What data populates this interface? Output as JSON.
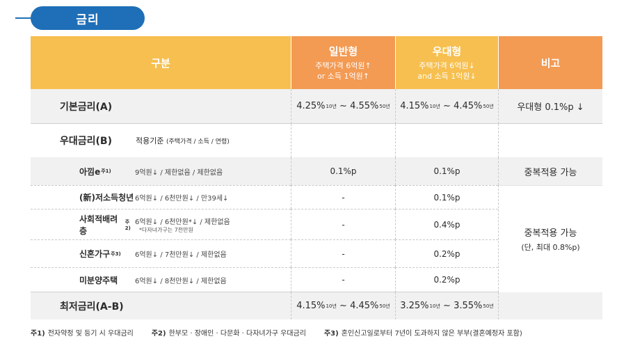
{
  "title": "금리",
  "header": {
    "gubun": "구분",
    "normal": {
      "name": "일반형",
      "line1": "주택가격 6억원↑",
      "line2": "or 소득 1억원↑"
    },
    "pref": {
      "name": "우대형",
      "line1": "주택가격 6억원↓",
      "line2": "and 소득 1억원↓"
    },
    "note": "비고"
  },
  "base": {
    "label": "기본금리(A)",
    "normal_rate": {
      "from": "4.25%",
      "from_sup": "10년",
      "sep": " ~ ",
      "to": "4.55%",
      "to_sup": "50년"
    },
    "pref_rate": {
      "from": "4.15%",
      "from_sup": "10년",
      "sep": " ~ ",
      "to": "4.45%",
      "to_sup": "50년"
    },
    "note": "우대형 0.1%p ↓"
  },
  "pref_section": {
    "label": "우대금리(B)",
    "criteria_label": "적용기준",
    "criteria_detail": "(주택가격 / 소득 / 연령)"
  },
  "rows": [
    {
      "name": "아낌e",
      "sup": "주1)",
      "criteria": "9억원↓ / 제한없음 / 제한없음",
      "criteria_note": "",
      "normal": "0.1%p",
      "pref": "0.1%p"
    },
    {
      "name": "(新)저소득청년",
      "sup": "",
      "criteria": "6억원↓ / 6천만원↓ / 만39세↓",
      "criteria_note": "",
      "normal": "-",
      "pref": "0.1%p"
    },
    {
      "name": "사회적배려층",
      "sup": "주2)",
      "criteria": "6억원↓ / 6천만원*↓ / 제한없음",
      "criteria_note": "*다자녀가구는 7천만원",
      "normal": "-",
      "pref": "0.4%p"
    },
    {
      "name": "신혼가구",
      "sup": "주3)",
      "criteria": "6억원↓ / 7천만원↓ / 제한없음",
      "criteria_note": "",
      "normal": "-",
      "pref": "0.2%p"
    },
    {
      "name": "미분양주택",
      "sup": "",
      "criteria": "6억원↓ / 8천만원↓ / 제한없음",
      "criteria_note": "",
      "normal": "-",
      "pref": "0.2%p"
    }
  ],
  "notes": {
    "dup1": "중복적용 가능",
    "dup2": "중복적용 가능",
    "dup2_sub": "(단, 최대 0.8%p)"
  },
  "lowest": {
    "label": "최저금리(A-B)",
    "normal_rate": {
      "from": "4.15%",
      "from_sup": "10년",
      "sep": " ~ ",
      "to": "4.45%",
      "to_sup": "50년"
    },
    "pref_rate": {
      "from": "3.25%",
      "from_sup": "10년",
      "sep": " ~ ",
      "to": "3.55%",
      "to_sup": "50년"
    }
  },
  "footnotes": [
    {
      "num": "주1)",
      "text": "전자약정 및 등기 시 우대금리"
    },
    {
      "num": "주2)",
      "text": "한부모 · 장애인 · 다문화 · 다자녀가구 우대금리"
    },
    {
      "num": "주3)",
      "text": "혼인신고일로부터 7년이 도과하지 않은 부부(결혼예정자 포함)"
    }
  ]
}
